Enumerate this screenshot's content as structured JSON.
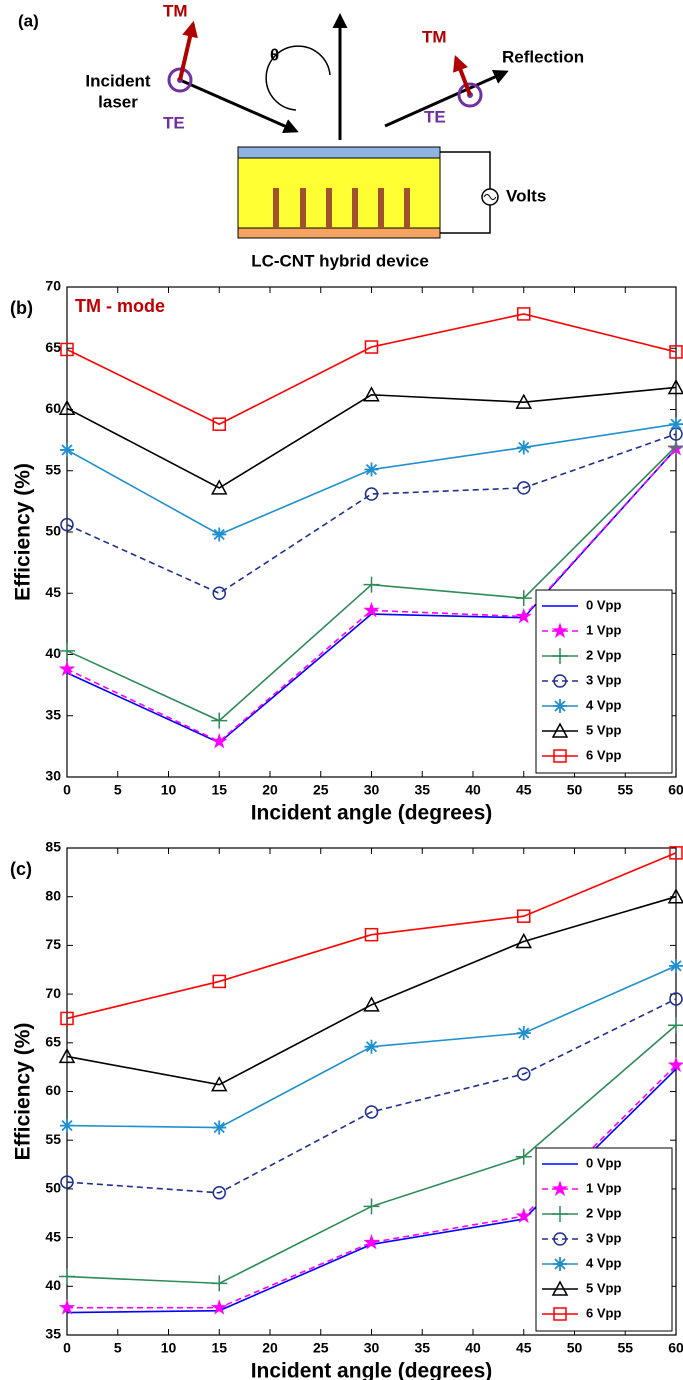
{
  "diagram": {
    "label": "(a)",
    "incident": [
      "Incident",
      "laser"
    ],
    "tm_in": "TM",
    "te_in": "TE",
    "theta": "θ",
    "tm_out": "TM",
    "te_out": "TE",
    "reflection": "Reflection",
    "volts": "Volts",
    "device": "LC-CNT hybrid device"
  },
  "chart_data": [
    {
      "type": "line",
      "panel": "(b)",
      "annotation": "TM - mode",
      "xlabel": "Incident angle (degrees)",
      "ylabel": "Efficiency (%)",
      "x": [
        0,
        15,
        30,
        45,
        60
      ],
      "xlim": [
        0,
        60
      ],
      "xticks": [
        0,
        5,
        10,
        15,
        20,
        25,
        30,
        35,
        40,
        45,
        50,
        55,
        60
      ],
      "ylim": [
        30,
        70
      ],
      "yticks": [
        30,
        35,
        40,
        45,
        50,
        55,
        60,
        65,
        70
      ],
      "legend": "lower right",
      "series": [
        {
          "name": "0 Vpp",
          "color": "#0000ff",
          "marker": "none",
          "dash": "solid",
          "values": [
            38.5,
            32.8,
            43.3,
            43.0,
            56.8
          ]
        },
        {
          "name": "1 Vpp",
          "color": "#ff00ff",
          "marker": "filled-star",
          "dash": "dashed",
          "values": [
            38.8,
            32.9,
            43.6,
            43.1,
            56.8
          ]
        },
        {
          "name": "2 Vpp",
          "color": "#2e8b57",
          "marker": "plus",
          "dash": "solid",
          "values": [
            40.3,
            34.6,
            45.7,
            44.6,
            57.0
          ]
        },
        {
          "name": "3 Vpp",
          "color": "#1f2f8f",
          "marker": "circle",
          "dash": "dashed",
          "values": [
            50.6,
            45.0,
            53.1,
            53.6,
            58.0
          ]
        },
        {
          "name": "4 Vpp",
          "color": "#1f8fcf",
          "marker": "asterisk",
          "dash": "solid",
          "values": [
            56.7,
            49.8,
            55.1,
            56.9,
            58.8
          ]
        },
        {
          "name": "5 Vpp",
          "color": "#000000",
          "marker": "triangle",
          "dash": "solid",
          "values": [
            60.1,
            53.6,
            61.2,
            60.6,
            61.8
          ]
        },
        {
          "name": "6 Vpp",
          "color": "#ff0000",
          "marker": "square",
          "dash": "solid",
          "values": [
            64.9,
            58.8,
            65.1,
            67.8,
            64.7
          ]
        }
      ]
    },
    {
      "type": "line",
      "panel": "(c)",
      "xlabel": "Incident angle (degrees)",
      "ylabel": "Efficiency (%)",
      "x": [
        0,
        15,
        30,
        45,
        60
      ],
      "xlim": [
        0,
        60
      ],
      "xticks": [
        0,
        5,
        10,
        15,
        20,
        25,
        30,
        35,
        40,
        45,
        50,
        55,
        60
      ],
      "ylim": [
        35,
        85
      ],
      "yticks": [
        35,
        40,
        45,
        50,
        55,
        60,
        65,
        70,
        75,
        80,
        85
      ],
      "legend": "lower right",
      "series": [
        {
          "name": "0 Vpp",
          "color": "#0000ff",
          "marker": "none",
          "dash": "solid",
          "values": [
            37.3,
            37.5,
            44.3,
            46.9,
            62.3
          ]
        },
        {
          "name": "1 Vpp",
          "color": "#ff00ff",
          "marker": "filled-star",
          "dash": "dashed",
          "values": [
            37.8,
            37.8,
            44.5,
            47.2,
            62.7
          ]
        },
        {
          "name": "2 Vpp",
          "color": "#2e8b57",
          "marker": "plus",
          "dash": "solid",
          "values": [
            41.0,
            40.3,
            48.2,
            53.3,
            66.8
          ]
        },
        {
          "name": "3 Vpp",
          "color": "#1f2f8f",
          "marker": "circle",
          "dash": "dashed",
          "values": [
            50.7,
            49.6,
            57.9,
            61.8,
            69.5
          ]
        },
        {
          "name": "4 Vpp",
          "color": "#1f8fcf",
          "marker": "asterisk",
          "dash": "solid",
          "values": [
            56.5,
            56.3,
            64.6,
            66.0,
            72.9
          ]
        },
        {
          "name": "5 Vpp",
          "color": "#000000",
          "marker": "triangle",
          "dash": "solid",
          "values": [
            63.6,
            60.7,
            68.9,
            75.4,
            80.0
          ]
        },
        {
          "name": "6 Vpp",
          "color": "#ff0000",
          "marker": "square",
          "dash": "solid",
          "values": [
            67.5,
            71.3,
            76.1,
            78.0,
            84.5
          ]
        }
      ]
    }
  ]
}
